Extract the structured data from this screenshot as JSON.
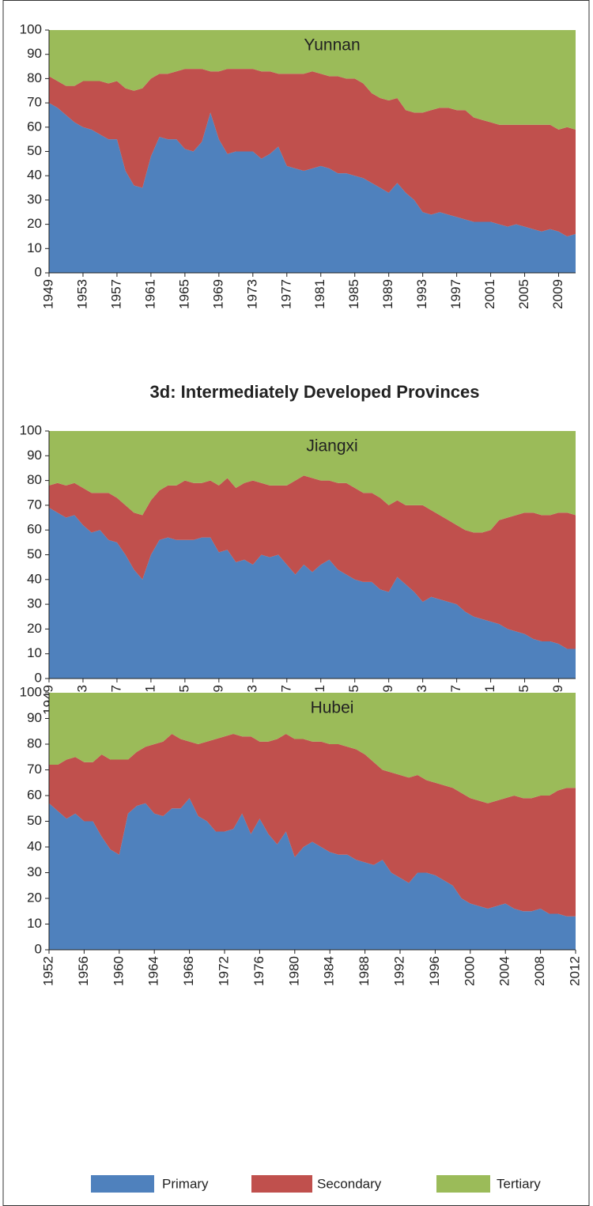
{
  "heading": "3d: Intermediately Developed Provinces",
  "chart_data": [
    {
      "type": "area",
      "stacked": true,
      "title": "Yunnan",
      "x": [
        1949,
        1950,
        1951,
        1952,
        1953,
        1954,
        1955,
        1956,
        1957,
        1958,
        1959,
        1960,
        1961,
        1962,
        1963,
        1964,
        1965,
        1966,
        1967,
        1968,
        1969,
        1970,
        1971,
        1972,
        1973,
        1974,
        1975,
        1976,
        1977,
        1978,
        1979,
        1980,
        1981,
        1982,
        1983,
        1984,
        1985,
        1986,
        1987,
        1988,
        1989,
        1990,
        1991,
        1992,
        1993,
        1994,
        1995,
        1996,
        1997,
        1998,
        1999,
        2000,
        2001,
        2002,
        2003,
        2004,
        2005,
        2006,
        2007,
        2008,
        2009,
        2010,
        2011
      ],
      "xlim": [
        1949,
        2011
      ],
      "xticks": [
        1949,
        1953,
        1957,
        1961,
        1965,
        1969,
        1973,
        1977,
        1981,
        1985,
        1989,
        1993,
        1997,
        2001,
        2005,
        2009
      ],
      "ylim": [
        0,
        100
      ],
      "yticks": [
        0,
        10,
        20,
        30,
        40,
        50,
        60,
        70,
        80,
        90,
        100
      ],
      "series": [
        {
          "name": "Primary",
          "color": "#4f81bd",
          "values": [
            70,
            68,
            65,
            62,
            60,
            59,
            57,
            55,
            55,
            42,
            36,
            35,
            48,
            56,
            55,
            55,
            51,
            50,
            54,
            66,
            55,
            49,
            50,
            50,
            50,
            47,
            49,
            52,
            44,
            43,
            42,
            43,
            44,
            43,
            41,
            41,
            40,
            39,
            37,
            35,
            33,
            37,
            33,
            30,
            25,
            24,
            25,
            24,
            23,
            22,
            21,
            21,
            21,
            20,
            19,
            20,
            19,
            18,
            17,
            18,
            17,
            15,
            16
          ]
        },
        {
          "name": "Secondary",
          "color": "#c0504d",
          "values": [
            11,
            11,
            12,
            15,
            19,
            20,
            22,
            23,
            24,
            34,
            39,
            41,
            32,
            26,
            27,
            28,
            33,
            34,
            30,
            17,
            28,
            35,
            34,
            34,
            34,
            36,
            34,
            30,
            38,
            39,
            40,
            40,
            38,
            38,
            40,
            39,
            40,
            39,
            37,
            37,
            38,
            35,
            34,
            36,
            41,
            43,
            43,
            44,
            44,
            45,
            43,
            42,
            41,
            41,
            42,
            41,
            42,
            43,
            44,
            43,
            42,
            45,
            43
          ]
        },
        {
          "name": "Tertiary",
          "color": "#9bbb59",
          "values": [
            19,
            21,
            23,
            23,
            21,
            21,
            21,
            22,
            21,
            24,
            25,
            24,
            20,
            18,
            18,
            17,
            16,
            16,
            16,
            17,
            17,
            16,
            16,
            16,
            16,
            17,
            17,
            18,
            18,
            18,
            18,
            17,
            18,
            19,
            19,
            20,
            20,
            22,
            26,
            28,
            29,
            28,
            33,
            34,
            34,
            33,
            32,
            32,
            33,
            33,
            36,
            37,
            38,
            39,
            39,
            39,
            39,
            39,
            39,
            39,
            41,
            40,
            41
          ]
        }
      ]
    },
    {
      "type": "area",
      "stacked": true,
      "title": "Jiangxi",
      "x": [
        1949,
        1950,
        1951,
        1952,
        1953,
        1954,
        1955,
        1956,
        1957,
        1958,
        1959,
        1960,
        1961,
        1962,
        1963,
        1964,
        1965,
        1966,
        1967,
        1968,
        1969,
        1970,
        1971,
        1972,
        1973,
        1974,
        1975,
        1976,
        1977,
        1978,
        1979,
        1980,
        1981,
        1982,
        1983,
        1984,
        1985,
        1986,
        1987,
        1988,
        1989,
        1990,
        1991,
        1992,
        1993,
        1994,
        1995,
        1996,
        1997,
        1998,
        1999,
        2000,
        2001,
        2002,
        2003,
        2004,
        2005,
        2006,
        2007,
        2008,
        2009,
        2010,
        2011
      ],
      "xlim": [
        1949,
        2011
      ],
      "xticks": [
        1949,
        1953,
        1957,
        1961,
        1965,
        1969,
        1973,
        1977,
        1981,
        1985,
        1989,
        1993,
        1997,
        2001,
        2005,
        2009
      ],
      "ylim": [
        0,
        100
      ],
      "yticks": [
        0,
        10,
        20,
        30,
        40,
        50,
        60,
        70,
        80,
        90,
        100
      ],
      "series": [
        {
          "name": "Primary",
          "color": "#4f81bd",
          "values": [
            69,
            67,
            65,
            66,
            62,
            59,
            60,
            56,
            55,
            50,
            44,
            40,
            50,
            56,
            57,
            56,
            56,
            56,
            57,
            57,
            51,
            52,
            47,
            48,
            46,
            50,
            49,
            50,
            46,
            42,
            46,
            43,
            46,
            48,
            44,
            42,
            40,
            39,
            39,
            36,
            35,
            41,
            38,
            35,
            31,
            33,
            32,
            31,
            30,
            27,
            25,
            24,
            23,
            22,
            20,
            19,
            18,
            16,
            15,
            15,
            14,
            12,
            12
          ]
        },
        {
          "name": "Secondary",
          "color": "#c0504d",
          "values": [
            9,
            12,
            13,
            13,
            15,
            16,
            15,
            19,
            18,
            20,
            23,
            26,
            22,
            20,
            21,
            22,
            24,
            23,
            22,
            23,
            27,
            29,
            30,
            31,
            34,
            29,
            29,
            28,
            32,
            38,
            36,
            38,
            34,
            32,
            35,
            37,
            37,
            36,
            36,
            37,
            35,
            31,
            32,
            35,
            39,
            35,
            34,
            33,
            32,
            33,
            34,
            35,
            37,
            42,
            45,
            47,
            49,
            51,
            51,
            51,
            53,
            55,
            54
          ]
        },
        {
          "name": "Tertiary",
          "color": "#9bbb59",
          "values": [
            22,
            21,
            22,
            21,
            23,
            25,
            25,
            25,
            27,
            30,
            33,
            34,
            28,
            24,
            22,
            22,
            20,
            21,
            21,
            20,
            22,
            19,
            23,
            21,
            20,
            21,
            22,
            22,
            22,
            20,
            18,
            19,
            20,
            20,
            21,
            21,
            23,
            25,
            25,
            27,
            30,
            28,
            30,
            30,
            30,
            32,
            34,
            36,
            38,
            40,
            41,
            41,
            40,
            36,
            35,
            34,
            33,
            33,
            34,
            34,
            33,
            33,
            34
          ]
        }
      ]
    },
    {
      "type": "area",
      "stacked": true,
      "title": "Hubei",
      "x": [
        1952,
        1953,
        1954,
        1955,
        1956,
        1957,
        1958,
        1959,
        1960,
        1961,
        1962,
        1963,
        1964,
        1965,
        1966,
        1967,
        1968,
        1969,
        1970,
        1971,
        1972,
        1973,
        1974,
        1975,
        1976,
        1977,
        1978,
        1979,
        1980,
        1981,
        1982,
        1983,
        1984,
        1985,
        1986,
        1987,
        1988,
        1989,
        1990,
        1991,
        1992,
        1993,
        1994,
        1995,
        1996,
        1997,
        1998,
        1999,
        2000,
        2001,
        2002,
        2003,
        2004,
        2005,
        2006,
        2007,
        2008,
        2009,
        2010,
        2011,
        2012
      ],
      "xlim": [
        1952,
        2012
      ],
      "xticks": [
        1952,
        1956,
        1960,
        1964,
        1968,
        1972,
        1976,
        1980,
        1984,
        1988,
        1992,
        1996,
        2000,
        2004,
        2008,
        2012
      ],
      "ylim": [
        0,
        100
      ],
      "yticks": [
        0,
        10,
        20,
        30,
        40,
        50,
        60,
        70,
        80,
        90,
        100
      ],
      "series": [
        {
          "name": "Primary",
          "color": "#4f81bd",
          "values": [
            57,
            54,
            51,
            53,
            50,
            50,
            44,
            39,
            37,
            53,
            56,
            57,
            53,
            52,
            55,
            55,
            59,
            52,
            50,
            46,
            46,
            47,
            53,
            45,
            51,
            45,
            41,
            46,
            36,
            40,
            42,
            40,
            38,
            37,
            37,
            35,
            34,
            33,
            35,
            30,
            28,
            26,
            30,
            30,
            29,
            27,
            25,
            20,
            18,
            17,
            16,
            17,
            18,
            16,
            15,
            15,
            16,
            14,
            14,
            13,
            13
          ]
        },
        {
          "name": "Secondary",
          "color": "#c0504d",
          "values": [
            15,
            18,
            23,
            22,
            23,
            23,
            32,
            35,
            37,
            21,
            21,
            22,
            27,
            29,
            29,
            27,
            22,
            28,
            31,
            36,
            37,
            37,
            30,
            38,
            30,
            36,
            41,
            38,
            46,
            42,
            39,
            41,
            42,
            43,
            42,
            43,
            42,
            40,
            35,
            39,
            40,
            41,
            38,
            36,
            36,
            37,
            38,
            41,
            41,
            41,
            41,
            41,
            41,
            44,
            44,
            44,
            44,
            46,
            48,
            50,
            50
          ]
        },
        {
          "name": "Tertiary",
          "color": "#9bbb59",
          "values": [
            28,
            28,
            26,
            25,
            27,
            27,
            24,
            26,
            26,
            26,
            23,
            21,
            20,
            19,
            16,
            18,
            19,
            20,
            19,
            18,
            17,
            16,
            17,
            17,
            19,
            19,
            18,
            16,
            18,
            18,
            19,
            19,
            20,
            20,
            21,
            22,
            24,
            27,
            30,
            31,
            32,
            33,
            32,
            34,
            35,
            36,
            37,
            39,
            41,
            42,
            43,
            42,
            41,
            40,
            41,
            41,
            40,
            40,
            38,
            37,
            37
          ]
        }
      ]
    }
  ]
}
